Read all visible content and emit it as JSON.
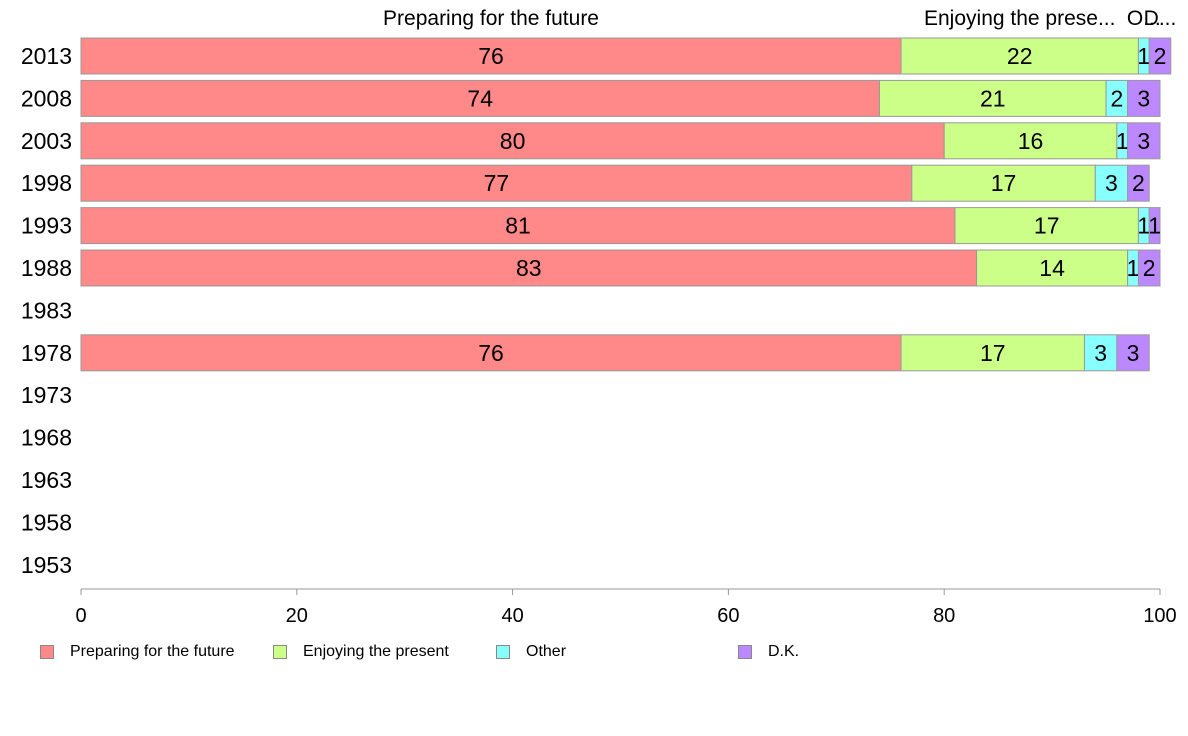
{
  "chart_data": {
    "type": "bar",
    "orientation": "horizontal",
    "stacked": true,
    "categories": [
      "2013",
      "2008",
      "2003",
      "1998",
      "1993",
      "1988",
      "1983",
      "1978",
      "1973",
      "1968",
      "1963",
      "1958",
      "1953"
    ],
    "series": [
      {
        "name": "Preparing for the future",
        "color": "#ff8888",
        "values": [
          76,
          74,
          80,
          77,
          81,
          83,
          null,
          76,
          null,
          null,
          null,
          null,
          null
        ]
      },
      {
        "name": "Enjoying the present",
        "color": "#ccff88",
        "values": [
          22,
          21,
          16,
          17,
          17,
          14,
          null,
          17,
          null,
          null,
          null,
          null,
          null
        ]
      },
      {
        "name": "Other",
        "color": "#88ffff",
        "values": [
          1,
          2,
          1,
          3,
          1,
          1,
          null,
          3,
          null,
          null,
          null,
          null,
          null
        ]
      },
      {
        "name": "D.K.",
        "color": "#bb88ff",
        "values": [
          2,
          3,
          3,
          2,
          1,
          2,
          null,
          3,
          null,
          null,
          null,
          null,
          null
        ]
      }
    ],
    "top_labels": [
      "Preparing for the future",
      "Enjoying the prese...",
      "O...",
      "D..."
    ],
    "xlim": [
      0,
      100
    ],
    "x_ticks": [
      "0",
      "20",
      "40",
      "60",
      "80",
      "100"
    ],
    "grid": false,
    "legend_position": "bottom"
  }
}
